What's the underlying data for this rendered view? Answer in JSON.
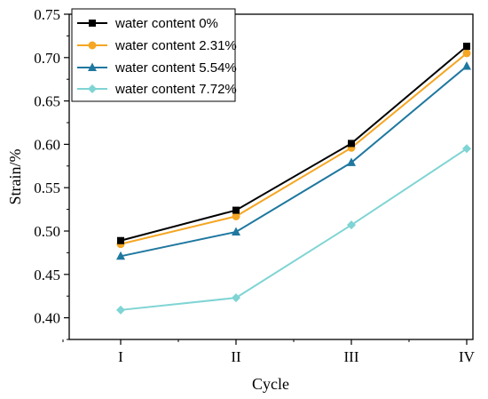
{
  "chart_data": {
    "type": "line",
    "title": "",
    "xlabel": "Cycle",
    "ylabel": "Strain/%",
    "categories": [
      "I",
      "II",
      "III",
      "IV"
    ],
    "ylim": [
      0.375,
      0.75
    ],
    "yticks": [
      "0.40",
      "0.45",
      "0.50",
      "0.55",
      "0.60",
      "0.65",
      "0.70",
      "0.75"
    ],
    "grid": false,
    "legend_position": "top-left",
    "series": [
      {
        "name": "water content 0%",
        "values": [
          0.489,
          0.524,
          0.601,
          0.713
        ],
        "color": "#000000",
        "marker": "square"
      },
      {
        "name": "water content 2.31%",
        "values": [
          0.485,
          0.517,
          0.596,
          0.705
        ],
        "color": "#f5a623",
        "marker": "circle"
      },
      {
        "name": "water content 5.54%",
        "values": [
          0.471,
          0.499,
          0.579,
          0.69
        ],
        "color": "#1f78a0",
        "marker": "triangle"
      },
      {
        "name": "water content 7.72%",
        "values": [
          0.409,
          0.423,
          0.507,
          0.595
        ],
        "color": "#7fd4d4",
        "marker": "diamond"
      }
    ]
  }
}
